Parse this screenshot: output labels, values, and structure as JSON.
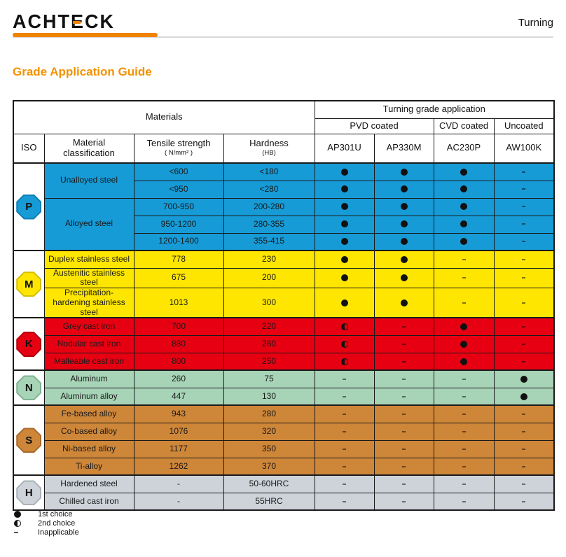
{
  "brand": {
    "part1": "ACHT",
    "e": "E",
    "part2": "CK"
  },
  "top_right": "Turning",
  "title": "Grade Application Guide",
  "colors": {
    "accent_orange": "#F08300",
    "title_orange": "#F39200",
    "p_blue": "#169BD7",
    "m_yellow": "#FFE600",
    "k_red": "#E60012",
    "n_green": "#A7D3B6",
    "s_brown": "#CE8639",
    "h_gray": "#CDD3D9"
  },
  "table": {
    "materials_header": "Materials",
    "application_header": "Turning grade application",
    "coatings": [
      {
        "label": "PVD coated",
        "span": 2
      },
      {
        "label": "CVD coated",
        "span": 1
      },
      {
        "label": "Uncoated",
        "span": 1
      }
    ],
    "columns": {
      "iso": "ISO",
      "classification": "Material classification",
      "tensile": "Tensile strength",
      "tensile_unit": "( N/mm² )",
      "hardness": "Hardness",
      "hardness_unit": "(HB)"
    },
    "grades": [
      "AP301U",
      "AP330M",
      "AC230P",
      "AW100K"
    ],
    "sections": [
      {
        "iso": "P",
        "color": "#169BD7",
        "border": "#0d7fb5",
        "groups": [
          {
            "label": "Unalloyed steel",
            "rows": [
              {
                "tensile": "<600",
                "hardness": "<180",
                "marks": [
                  "dot",
                  "dot",
                  "dot",
                  "dash"
                ]
              },
              {
                "tensile": "<950",
                "hardness": "<280",
                "marks": [
                  "dot",
                  "dot",
                  "dot",
                  "dash"
                ]
              }
            ]
          },
          {
            "label": "Alloyed steel",
            "rows": [
              {
                "tensile": "700-950",
                "hardness": "200-280",
                "marks": [
                  "dot",
                  "dot",
                  "dot",
                  "dash"
                ]
              },
              {
                "tensile": "950-1200",
                "hardness": "280-355",
                "marks": [
                  "dot",
                  "dot",
                  "dot",
                  "dash"
                ]
              },
              {
                "tensile": "1200-1400",
                "hardness": "355-415",
                "marks": [
                  "dot",
                  "dot",
                  "dot",
                  "dash"
                ]
              }
            ]
          }
        ]
      },
      {
        "iso": "M",
        "color": "#FFE600",
        "border": "#d4be00",
        "groups": [
          {
            "label": "Duplex stainless steel",
            "rows": [
              {
                "tensile": "778",
                "hardness": "230",
                "marks": [
                  "dot",
                  "dot",
                  "dash",
                  "dash"
                ]
              }
            ]
          },
          {
            "label": "Austenitic stainless steel",
            "rows": [
              {
                "tensile": "675",
                "hardness": "200",
                "marks": [
                  "dot",
                  "dot",
                  "dash",
                  "dash"
                ]
              }
            ]
          },
          {
            "label": "Precipitation-hardening stainless steel",
            "rows": [
              {
                "tensile": "1013",
                "hardness": "300",
                "tall": true,
                "marks": [
                  "dot",
                  "dot",
                  "dash",
                  "dash"
                ]
              }
            ]
          }
        ]
      },
      {
        "iso": "K",
        "color": "#E60012",
        "border": "#b3000f",
        "groups": [
          {
            "label": "Grey cast iron",
            "rows": [
              {
                "tensile": "700",
                "hardness": "220",
                "marks": [
                  "half",
                  "dash",
                  "dot",
                  "dash"
                ]
              }
            ]
          },
          {
            "label": "Nodular cast iron",
            "rows": [
              {
                "tensile": "880",
                "hardness": "260",
                "marks": [
                  "half",
                  "dash",
                  "dot",
                  "dash"
                ]
              }
            ]
          },
          {
            "label": "Malleable cast iron",
            "rows": [
              {
                "tensile": "800",
                "hardness": "250",
                "marks": [
                  "half",
                  "dash",
                  "dot",
                  "dash"
                ]
              }
            ]
          }
        ]
      },
      {
        "iso": "N",
        "color": "#A7D3B6",
        "border": "#7fb394",
        "groups": [
          {
            "label": "Aluminum",
            "rows": [
              {
                "tensile": "260",
                "hardness": "75",
                "marks": [
                  "dash",
                  "dash",
                  "dash",
                  "dot"
                ]
              }
            ]
          },
          {
            "label": "Aluminum alloy",
            "rows": [
              {
                "tensile": "447",
                "hardness": "130",
                "marks": [
                  "dash",
                  "dash",
                  "dash",
                  "dot"
                ]
              }
            ]
          }
        ]
      },
      {
        "iso": "S",
        "color": "#CE8639",
        "border": "#a86a2a",
        "groups": [
          {
            "label": "Fe-based alloy",
            "rows": [
              {
                "tensile": "943",
                "hardness": "280",
                "marks": [
                  "dash",
                  "dash",
                  "dash",
                  "dash"
                ]
              }
            ]
          },
          {
            "label": "Co-based alloy",
            "rows": [
              {
                "tensile": "1076",
                "hardness": "320",
                "marks": [
                  "dash",
                  "dash",
                  "dash",
                  "dash"
                ]
              }
            ]
          },
          {
            "label": "Ni-based alloy",
            "rows": [
              {
                "tensile": "1177",
                "hardness": "350",
                "marks": [
                  "dash",
                  "dash",
                  "dash",
                  "dash"
                ]
              }
            ]
          },
          {
            "label": "Ti-alloy",
            "rows": [
              {
                "tensile": "1262",
                "hardness": "370",
                "marks": [
                  "dash",
                  "dash",
                  "dash",
                  "dash"
                ]
              }
            ]
          }
        ]
      },
      {
        "iso": "H",
        "color": "#CDD3D9",
        "border": "#a9b2ba",
        "groups": [
          {
            "label": "Hardened steel",
            "rows": [
              {
                "tensile": "-",
                "hardness": "50-60HRC",
                "marks": [
                  "dash",
                  "dash",
                  "dash",
                  "dash"
                ]
              }
            ]
          },
          {
            "label": "Chilled cast iron",
            "rows": [
              {
                "tensile": "-",
                "hardness": "55HRC",
                "marks": [
                  "dash",
                  "dash",
                  "dash",
                  "dash"
                ]
              }
            ]
          }
        ]
      }
    ],
    "legend": [
      {
        "mark": "dot",
        "label": "1st choice"
      },
      {
        "mark": "half",
        "label": "2nd choice"
      },
      {
        "mark": "dash",
        "label": "Inapplicable"
      }
    ]
  }
}
